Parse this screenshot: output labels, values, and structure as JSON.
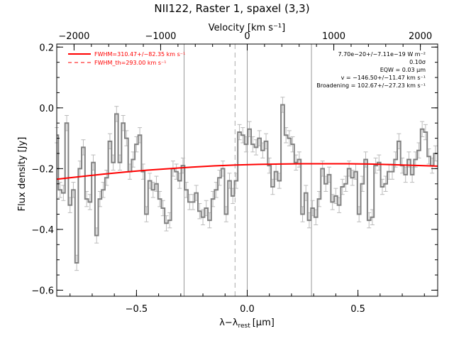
{
  "chart_data": {
    "type": "line",
    "title": "NII122, Raster 1, spaxel (3,3)",
    "xlabel": "λ−λ",
    "xlabel_sub": "rest",
    "xlabel_unit": "[μm]",
    "ylabel": "Flux density [Jy]",
    "top_axis_label": "Velocity [km s⁻¹]",
    "xlim": [
      -0.86,
      0.86
    ],
    "ylim": [
      -0.62,
      0.21
    ],
    "top_xlim": [
      -2200,
      2200
    ],
    "x_ticks": [
      -0.5,
      0.0,
      0.5
    ],
    "x_tick_labels": [
      "−0.5",
      "0.0",
      "0.5"
    ],
    "y_ticks": [
      0.2,
      0.0,
      -0.2,
      -0.4,
      -0.6
    ],
    "y_tick_labels": [
      "0.2",
      "0.0",
      "−0.2",
      "−0.4",
      "−0.6"
    ],
    "top_ticks": [
      -2000,
      -1000,
      0,
      1000,
      2000
    ],
    "top_tick_labels": [
      "−2000",
      "−1000",
      "0",
      "1000",
      "2000"
    ],
    "vertical_lines": [
      {
        "x": -0.285,
        "style": "solid"
      },
      {
        "x": -0.055,
        "style": "dashed"
      },
      {
        "x": 0.0,
        "style": "solid"
      },
      {
        "x": 0.29,
        "style": "solid"
      }
    ],
    "legend": [
      {
        "label": "FWHM=310.47+/−82.35 km s⁻¹",
        "style": "solid",
        "color": "#ff0000"
      },
      {
        "label": "FWHM_th=293.00 km s⁻¹",
        "style": "dashed",
        "color": "#ff0000"
      }
    ],
    "annotations": [
      "7.70e−20+/−7.11e−19 W m⁻²",
      "0.10σ",
      "EQW = 0.03 μm",
      "v = −146.50+/−11.47 km s⁻¹",
      "Broadening = 102.67+/−27.23 km s⁻¹"
    ],
    "series": [
      {
        "name": "spectrum",
        "style": "step",
        "color": "#808080",
        "x": [
          -0.86,
          -0.845,
          -0.83,
          -0.815,
          -0.8,
          -0.785,
          -0.77,
          -0.755,
          -0.74,
          -0.725,
          -0.71,
          -0.695,
          -0.68,
          -0.665,
          -0.65,
          -0.635,
          -0.62,
          -0.605,
          -0.59,
          -0.575,
          -0.56,
          -0.545,
          -0.53,
          -0.515,
          -0.5,
          -0.485,
          -0.47,
          -0.455,
          -0.44,
          -0.425,
          -0.41,
          -0.395,
          -0.38,
          -0.365,
          -0.35,
          -0.335,
          -0.32,
          -0.305,
          -0.29,
          -0.275,
          -0.26,
          -0.245,
          -0.23,
          -0.215,
          -0.2,
          -0.185,
          -0.17,
          -0.155,
          -0.14,
          -0.125,
          -0.11,
          -0.095,
          -0.08,
          -0.065,
          -0.05,
          -0.035,
          -0.02,
          -0.005,
          0.01,
          0.025,
          0.04,
          0.055,
          0.07,
          0.085,
          0.1,
          0.115,
          0.13,
          0.145,
          0.16,
          0.175,
          0.19,
          0.205,
          0.22,
          0.235,
          0.25,
          0.265,
          0.28,
          0.295,
          0.31,
          0.325,
          0.34,
          0.355,
          0.37,
          0.385,
          0.4,
          0.415,
          0.43,
          0.445,
          0.46,
          0.475,
          0.49,
          0.505,
          0.52,
          0.535,
          0.55,
          0.565,
          0.58,
          0.595,
          0.61,
          0.625,
          0.64,
          0.655,
          0.67,
          0.685,
          0.7,
          0.715,
          0.73,
          0.745,
          0.76,
          0.775,
          0.79,
          0.805,
          0.82,
          0.835,
          0.85
        ],
        "y": [
          -0.09,
          -0.27,
          -0.28,
          -0.05,
          -0.32,
          -0.27,
          -0.51,
          -0.2,
          -0.13,
          -0.3,
          -0.31,
          -0.18,
          -0.42,
          -0.3,
          -0.27,
          -0.23,
          -0.11,
          -0.18,
          -0.02,
          -0.18,
          -0.05,
          -0.1,
          -0.21,
          -0.17,
          -0.12,
          -0.09,
          -0.21,
          -0.35,
          -0.24,
          -0.27,
          -0.25,
          -0.3,
          -0.33,
          -0.38,
          -0.37,
          -0.2,
          -0.21,
          -0.24,
          -0.19,
          -0.27,
          -0.31,
          -0.31,
          -0.28,
          -0.34,
          -0.36,
          -0.33,
          -0.37,
          -0.3,
          -0.27,
          -0.23,
          -0.2,
          -0.35,
          -0.24,
          -0.29,
          -0.24,
          -0.08,
          -0.09,
          -0.12,
          -0.07,
          -0.12,
          -0.13,
          -0.1,
          -0.14,
          -0.11,
          -0.19,
          -0.26,
          -0.21,
          -0.24,
          0.01,
          -0.09,
          -0.1,
          -0.12,
          -0.18,
          -0.17,
          -0.35,
          -0.28,
          -0.37,
          -0.33,
          -0.36,
          -0.3,
          -0.2,
          -0.25,
          -0.22,
          -0.31,
          -0.29,
          -0.32,
          -0.26,
          -0.25,
          -0.2,
          -0.23,
          -0.21,
          -0.35,
          -0.25,
          -0.17,
          -0.37,
          -0.36,
          -0.19,
          -0.18,
          -0.26,
          -0.25,
          -0.21,
          -0.21,
          -0.17,
          -0.11,
          -0.19,
          -0.22,
          -0.17,
          -0.22,
          -0.17,
          -0.14,
          -0.07,
          -0.08,
          -0.16,
          -0.19,
          -0.15
        ],
        "error": 0.025
      },
      {
        "name": "gaussian fit",
        "style": "line",
        "color": "#ff0000",
        "x": [
          -0.86,
          -0.75,
          -0.65,
          -0.55,
          -0.45,
          -0.35,
          -0.25,
          -0.15,
          -0.05,
          0.05,
          0.15,
          0.25,
          0.35,
          0.45,
          0.55,
          0.65,
          0.75,
          0.86
        ],
        "y": [
          -0.235,
          -0.226,
          -0.218,
          -0.211,
          -0.205,
          -0.2,
          -0.195,
          -0.191,
          -0.188,
          -0.186,
          -0.185,
          -0.184,
          -0.184,
          -0.184,
          -0.185,
          -0.187,
          -0.189,
          -0.192
        ]
      }
    ]
  }
}
